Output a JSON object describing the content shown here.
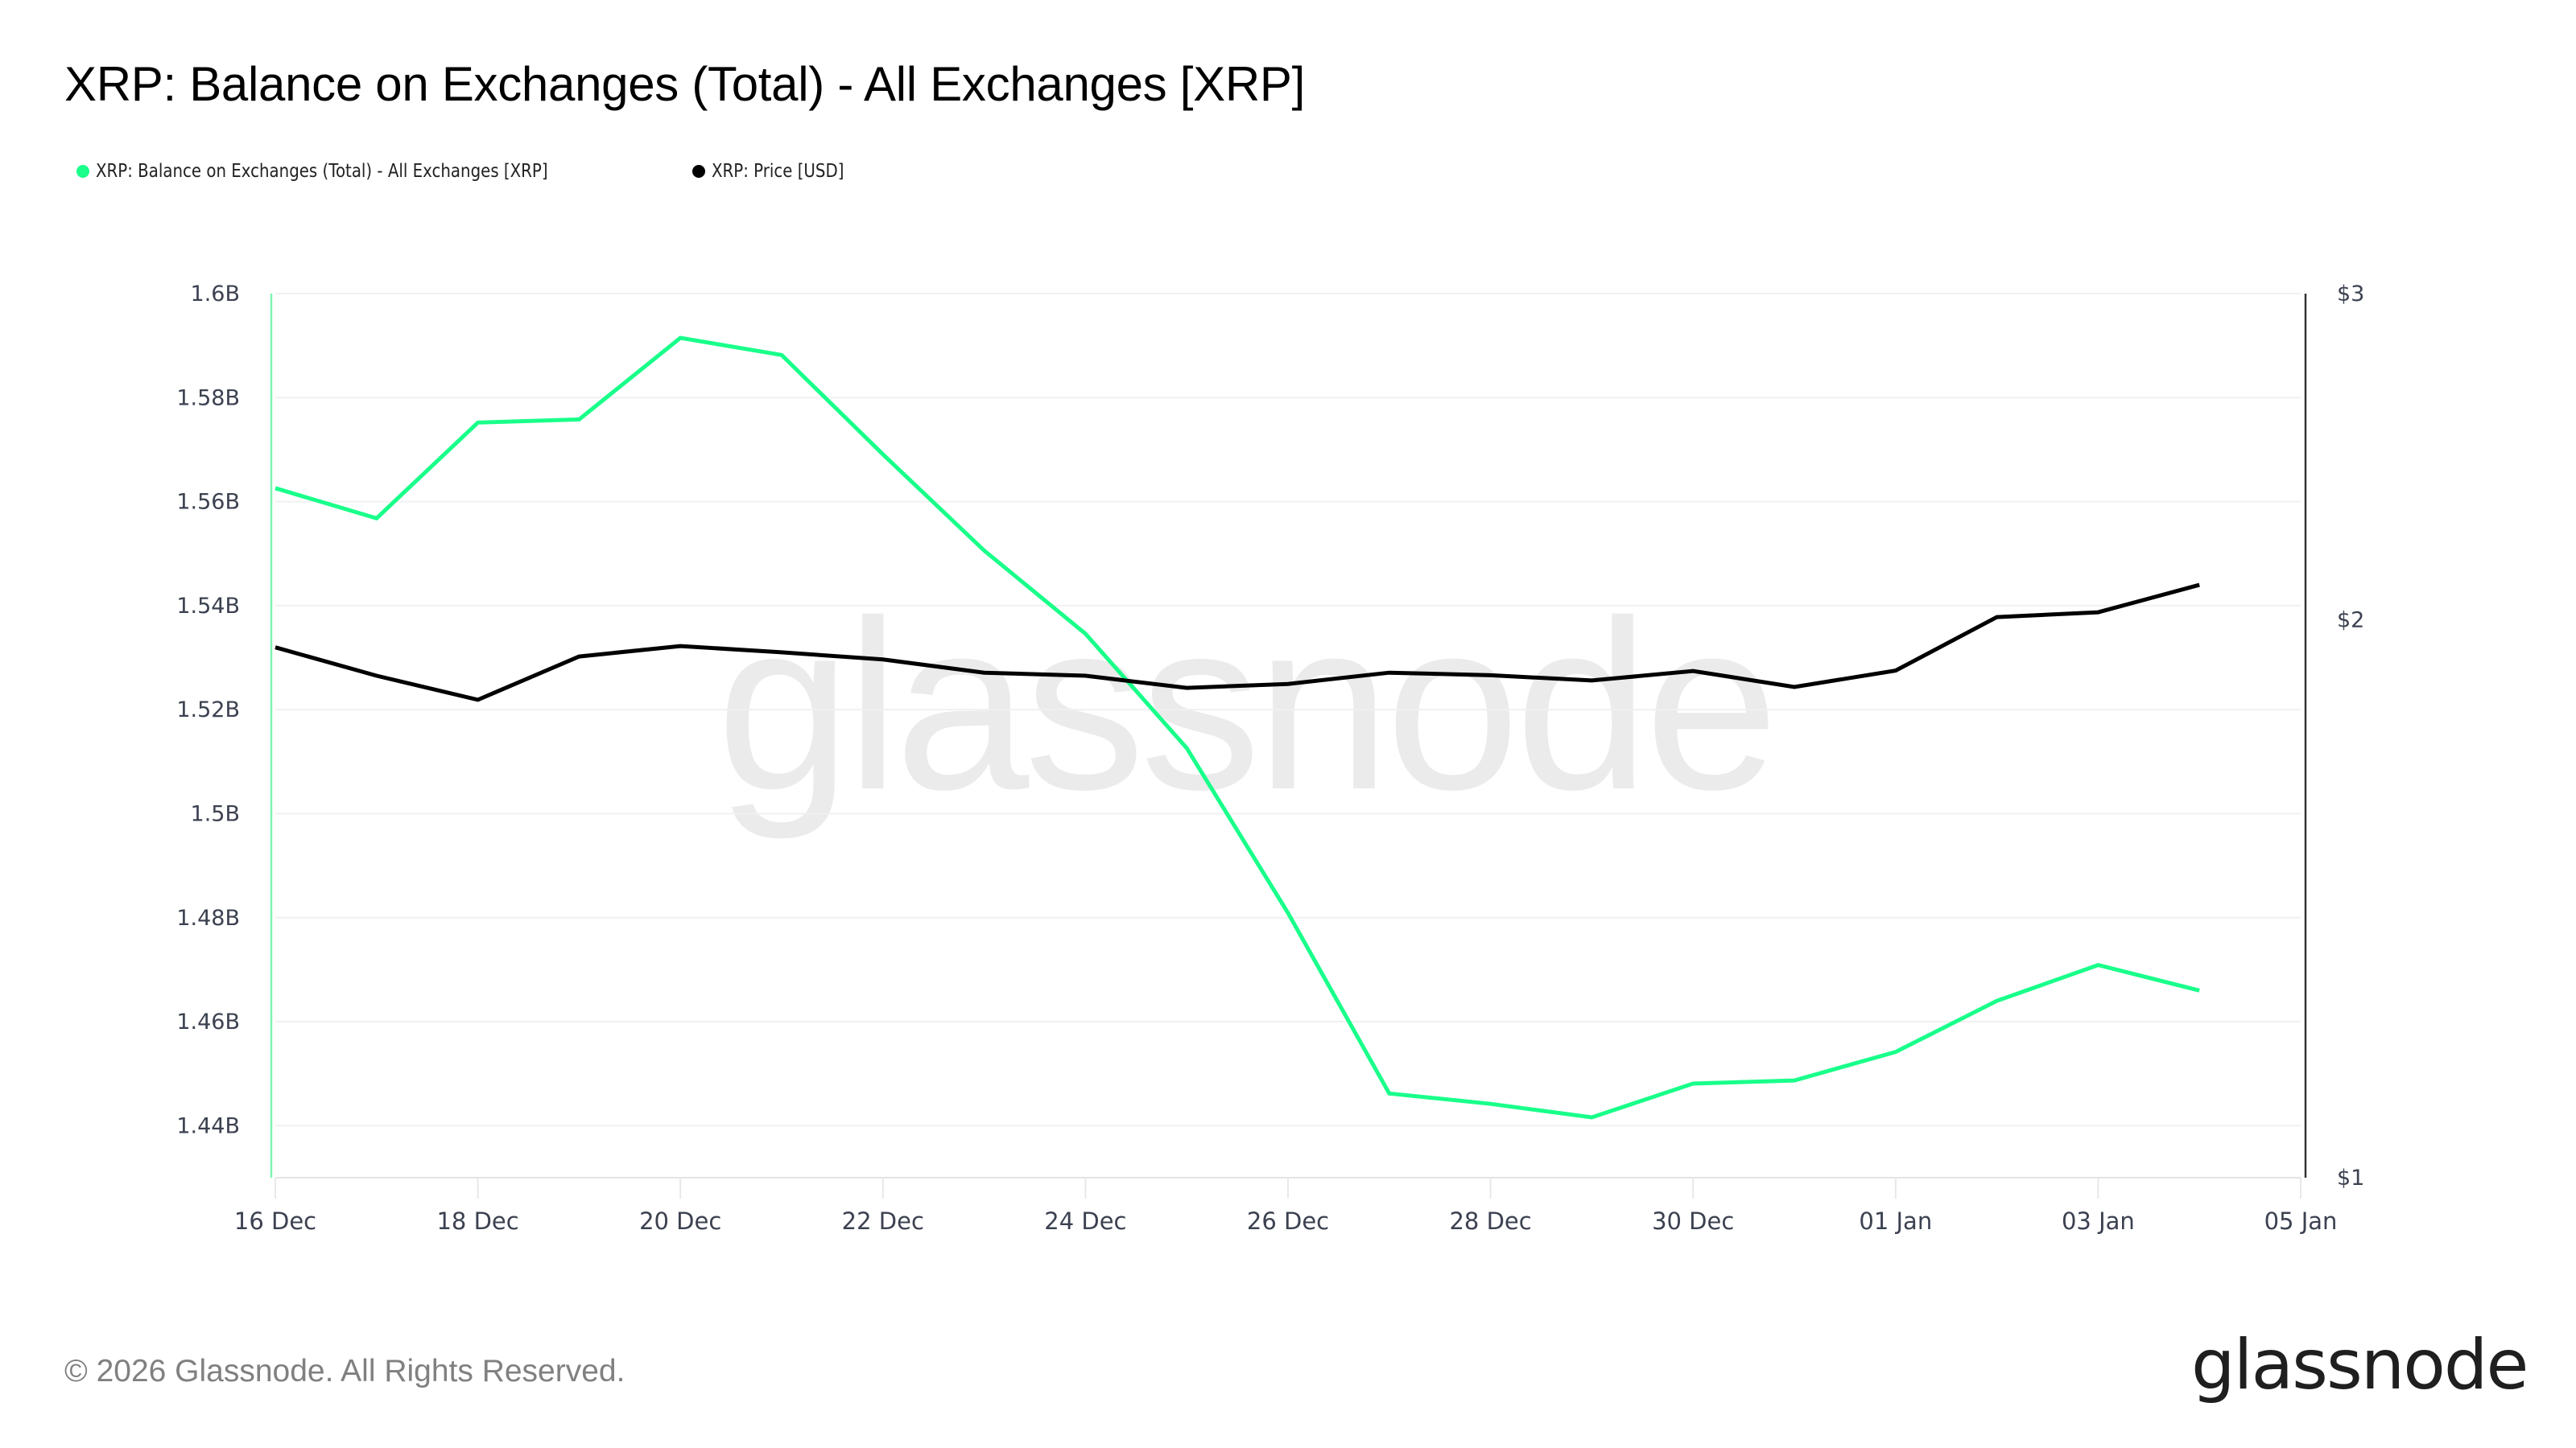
{
  "header": {
    "title": "XRP: Balance on Exchanges (Total) - All Exchanges [XRP]"
  },
  "legend": [
    {
      "label": "XRP: Balance on Exchanges (Total) - All Exchanges [XRP]",
      "color": "#19ff8a"
    },
    {
      "label": "XRP: Price [USD]",
      "color": "#000000"
    }
  ],
  "watermark": "glassnode",
  "footer": {
    "copyright": "© 2026 Glassnode. All Rights Reserved.",
    "logo": "glassnode"
  },
  "colors": {
    "balance_line": "#19ff8a",
    "balance_axis": "#7ff5b5",
    "price_line": "#000000",
    "price_axis": "#333333",
    "grid": "#f0f0f0",
    "tick_text": "#3b4150"
  },
  "chart_data": {
    "type": "line",
    "title": "XRP: Balance on Exchanges (Total) - All Exchanges [XRP]",
    "x": [
      "16 Dec",
      "17 Dec",
      "18 Dec",
      "19 Dec",
      "20 Dec",
      "21 Dec",
      "22 Dec",
      "23 Dec",
      "24 Dec",
      "25 Dec",
      "26 Dec",
      "27 Dec",
      "28 Dec",
      "29 Dec",
      "30 Dec",
      "31 Dec",
      "01 Jan",
      "02 Jan",
      "03 Jan",
      "04 Jan"
    ],
    "x_ticks": [
      "16 Dec",
      "18 Dec",
      "20 Dec",
      "22 Dec",
      "24 Dec",
      "26 Dec",
      "28 Dec",
      "30 Dec",
      "01 Jan",
      "03 Jan",
      "05 Jan"
    ],
    "x_range_days": 20,
    "series": [
      {
        "name": "XRP: Balance on Exchanges (Total) - All Exchanges [XRP]",
        "axis": "left",
        "unit": "B",
        "color": "#19ff8a",
        "values": [
          1.5626,
          1.5568,
          1.5752,
          1.5758,
          1.5915,
          1.5882,
          1.5691,
          1.5506,
          1.5346,
          1.5126,
          1.4809,
          1.4462,
          1.4442,
          1.4416,
          1.4481,
          1.4487,
          1.4542,
          1.464,
          1.4709,
          1.466
        ]
      },
      {
        "name": "XRP: Price [USD]",
        "axis": "right",
        "unit": "USD",
        "color": "#000000",
        "values": [
          1.933,
          1.866,
          1.811,
          1.911,
          1.936,
          1.921,
          1.904,
          1.873,
          1.866,
          1.838,
          1.847,
          1.873,
          1.867,
          1.855,
          1.877,
          1.84,
          1.878,
          2.007,
          2.019,
          2.089
        ]
      }
    ],
    "y_left": {
      "label": "",
      "ticks": [
        "1.44B",
        "1.46B",
        "1.48B",
        "1.5B",
        "1.52B",
        "1.54B",
        "1.56B",
        "1.58B",
        "1.6B"
      ],
      "tick_values": [
        1.44,
        1.46,
        1.48,
        1.5,
        1.52,
        1.54,
        1.56,
        1.58,
        1.6
      ],
      "ylim": [
        1.43,
        1.6
      ],
      "scale": "linear"
    },
    "y_right": {
      "label": "",
      "ticks": [
        "$1",
        "$2",
        "$3"
      ],
      "tick_values": [
        1,
        2,
        3
      ],
      "ylim": [
        1,
        3
      ],
      "scale": "log"
    },
    "grid": true,
    "legend_position": "top-left"
  }
}
